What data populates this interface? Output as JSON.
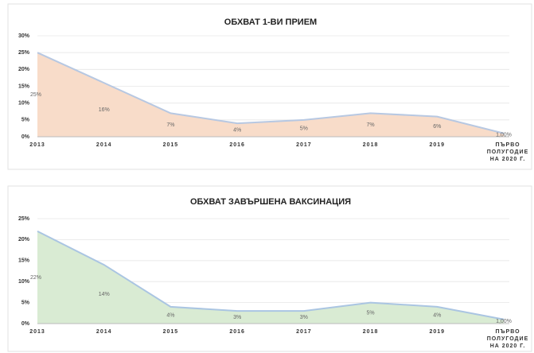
{
  "chart_data": [
    {
      "type": "area",
      "title": "ОБХВАТ 1-ВИ ПРИЕМ",
      "categories": [
        "2013",
        "2014",
        "2015",
        "2016",
        "2017",
        "2018",
        "2019",
        "ПЪРВО\nПОЛУГОДИЕ\nНА 2020 Г."
      ],
      "values": [
        25,
        16,
        7,
        4,
        5,
        7,
        6,
        1
      ],
      "value_labels": [
        "25%",
        "16%",
        "7%",
        "4%",
        "5%",
        "7%",
        "6%",
        "1,00%"
      ],
      "color": "#f8dcc9",
      "line_color": "#b7c8e2",
      "ylim": [
        0,
        30
      ],
      "yticks": [
        {
          "value": 0,
          "label": "0%"
        },
        {
          "value": 5,
          "label": "5%"
        },
        {
          "value": 10,
          "label": "10%"
        },
        {
          "value": 15,
          "label": "15%"
        },
        {
          "value": 20,
          "label": "20%"
        },
        {
          "value": 25,
          "label": "25%"
        },
        {
          "value": 30,
          "label": "30%"
        }
      ],
      "grid": true
    },
    {
      "type": "area",
      "title": "ОБХВАТ ЗАВЪРШЕНА ВАКСИНАЦИЯ",
      "categories": [
        "2013",
        "2014",
        "2015",
        "2016",
        "2017",
        "2018",
        "2019",
        "ПЪРВО\nПОЛУГОДИЕ\nНА 2020 Г."
      ],
      "values": [
        22,
        14,
        4,
        3,
        3,
        5,
        4,
        1
      ],
      "value_labels": [
        "22%",
        "14%",
        "4%",
        "3%",
        "3%",
        "5%",
        "4%",
        "1,00%"
      ],
      "color": "#d9ebd3",
      "line_color": "#aac5e2",
      "ylim": [
        0,
        25
      ],
      "yticks": [
        {
          "value": 0,
          "label": "0%"
        },
        {
          "value": 5,
          "label": "5%"
        },
        {
          "value": 10,
          "label": "10%"
        },
        {
          "value": 15,
          "label": "15%"
        },
        {
          "value": 20,
          "label": "20%"
        },
        {
          "value": 25,
          "label": "25%"
        }
      ],
      "grid": true
    }
  ]
}
